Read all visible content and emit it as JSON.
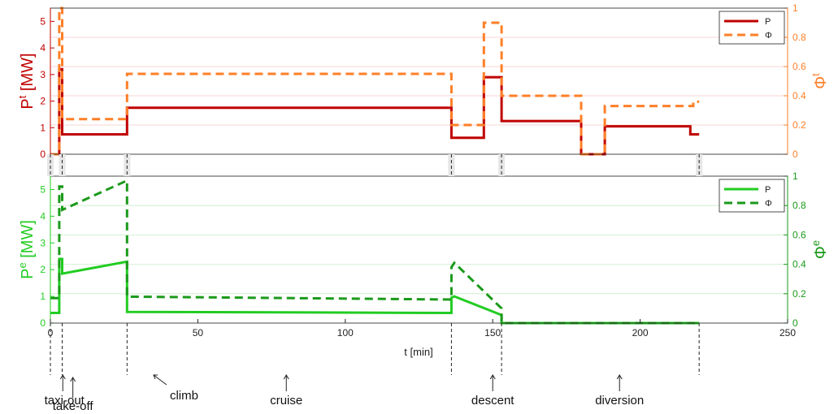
{
  "chart_data": [
    {
      "type": "line",
      "xlim": [
        0,
        250
      ],
      "ylim_left": [
        0,
        5.5
      ],
      "ylim_right": [
        0,
        1
      ],
      "ylabel_left": {
        "base": "P",
        "sup": "t",
        "unit": " [MW]"
      },
      "ylabel_right": {
        "base": "Φ",
        "sup": "t"
      },
      "left_color": "#c00000",
      "right_color": "#ff7f27",
      "y_ticks_left": [
        "0",
        "1",
        "2",
        "3",
        "4",
        "5"
      ],
      "y_ticks_right": [
        "0",
        "0.2",
        "0.4",
        "0.6",
        "0.8",
        "1"
      ],
      "grid": true,
      "legend_position": "top-right",
      "series": [
        {
          "name": "P",
          "axis": "left",
          "color": "#c00000",
          "style": "solid",
          "points": [
            [
              0,
              0
            ],
            [
              3,
              0
            ],
            [
              3,
              3.2
            ],
            [
              4,
              3.2
            ],
            [
              4,
              0.75
            ],
            [
              26,
              0.75
            ],
            [
              26,
              1.75
            ],
            [
              136,
              1.75
            ],
            [
              136,
              0.62
            ],
            [
              147,
              0.62
            ],
            [
              147,
              2.9
            ],
            [
              153,
              2.9
            ],
            [
              153,
              1.25
            ],
            [
              180,
              1.25
            ],
            [
              180,
              0
            ],
            [
              188,
              0
            ],
            [
              188,
              1.05
            ],
            [
              217,
              1.05
            ],
            [
              217,
              0.75
            ],
            [
              220,
              0.75
            ]
          ]
        },
        {
          "name": "Φ",
          "axis": "right",
          "color": "#ff7f27",
          "style": "dashed",
          "points": [
            [
              0,
              0
            ],
            [
              3,
              0
            ],
            [
              3,
              1
            ],
            [
              4,
              1
            ],
            [
              4,
              0.24
            ],
            [
              26,
              0.24
            ],
            [
              26,
              0.55
            ],
            [
              136,
              0.55
            ],
            [
              136,
              0.2
            ],
            [
              147,
              0.2
            ],
            [
              147,
              0.9
            ],
            [
              153,
              0.9
            ],
            [
              153,
              0.4
            ],
            [
              180,
              0.4
            ],
            [
              180,
              0
            ],
            [
              188,
              0
            ],
            [
              188,
              0.33
            ],
            [
              218,
              0.33
            ],
            [
              218,
              0.36
            ],
            [
              220,
              0.36
            ]
          ]
        }
      ]
    },
    {
      "type": "line",
      "xlim": [
        0,
        250
      ],
      "ylim_left": [
        0,
        5.5
      ],
      "ylim_right": [
        0,
        1
      ],
      "xlabel": "t [min]",
      "x_ticks": [
        "0",
        "50",
        "100",
        "150",
        "200",
        "250"
      ],
      "ylabel_left": {
        "base": "P",
        "sup": "e",
        "unit": " [MW]"
      },
      "ylabel_right": {
        "base": "Φ",
        "sup": "e"
      },
      "left_color": "#22cc22",
      "right_color": "#1a9a1a",
      "y_ticks_left": [
        "0",
        "1",
        "2",
        "3",
        "4",
        "5"
      ],
      "y_ticks_right": [
        "0",
        "0.2",
        "0.4",
        "0.6",
        "0.8",
        "1"
      ],
      "grid": true,
      "legend_position": "top-right",
      "series": [
        {
          "name": "P",
          "axis": "left",
          "color": "#22cc22",
          "style": "solid",
          "points": [
            [
              0,
              0.38
            ],
            [
              3,
              0.38
            ],
            [
              3,
              2.4
            ],
            [
              4,
              2.4
            ],
            [
              4,
              1.85
            ],
            [
              26,
              2.3
            ],
            [
              26,
              0.42
            ],
            [
              136,
              0.38
            ],
            [
              136,
              0.95
            ],
            [
              137,
              1.0
            ],
            [
              153,
              0.3
            ],
            [
              153,
              0
            ],
            [
              220,
              0
            ]
          ]
        },
        {
          "name": "Φ",
          "axis": "right",
          "color": "#1a9a1a",
          "style": "dashed",
          "points": [
            [
              0,
              0.17
            ],
            [
              3,
              0.17
            ],
            [
              3,
              0.93
            ],
            [
              4,
              0.93
            ],
            [
              4,
              0.77
            ],
            [
              26,
              0.97
            ],
            [
              26,
              0.18
            ],
            [
              136,
              0.16
            ],
            [
              136,
              0.38
            ],
            [
              137,
              0.41
            ],
            [
              153,
              0.1
            ],
            [
              153,
              0
            ],
            [
              220,
              0
            ]
          ]
        }
      ]
    }
  ],
  "phase_markers": [
    {
      "label": "taxi-out",
      "x": 0
    },
    {
      "label": "take-off",
      "x": 4
    },
    {
      "label": "climb",
      "x": 26
    },
    {
      "label": "cruise",
      "x": 136
    },
    {
      "label": "descent",
      "x": 153
    },
    {
      "label": "diversion",
      "x": 220
    }
  ],
  "phase_labels": [
    {
      "text": "taxi-out",
      "x": 2
    },
    {
      "text": "take-off",
      "x": 9
    },
    {
      "text": "climb",
      "x": 35
    },
    {
      "text": "cruise",
      "x": 80
    },
    {
      "text": "descent",
      "x": 150
    },
    {
      "text": "diversion",
      "x": 193
    }
  ]
}
